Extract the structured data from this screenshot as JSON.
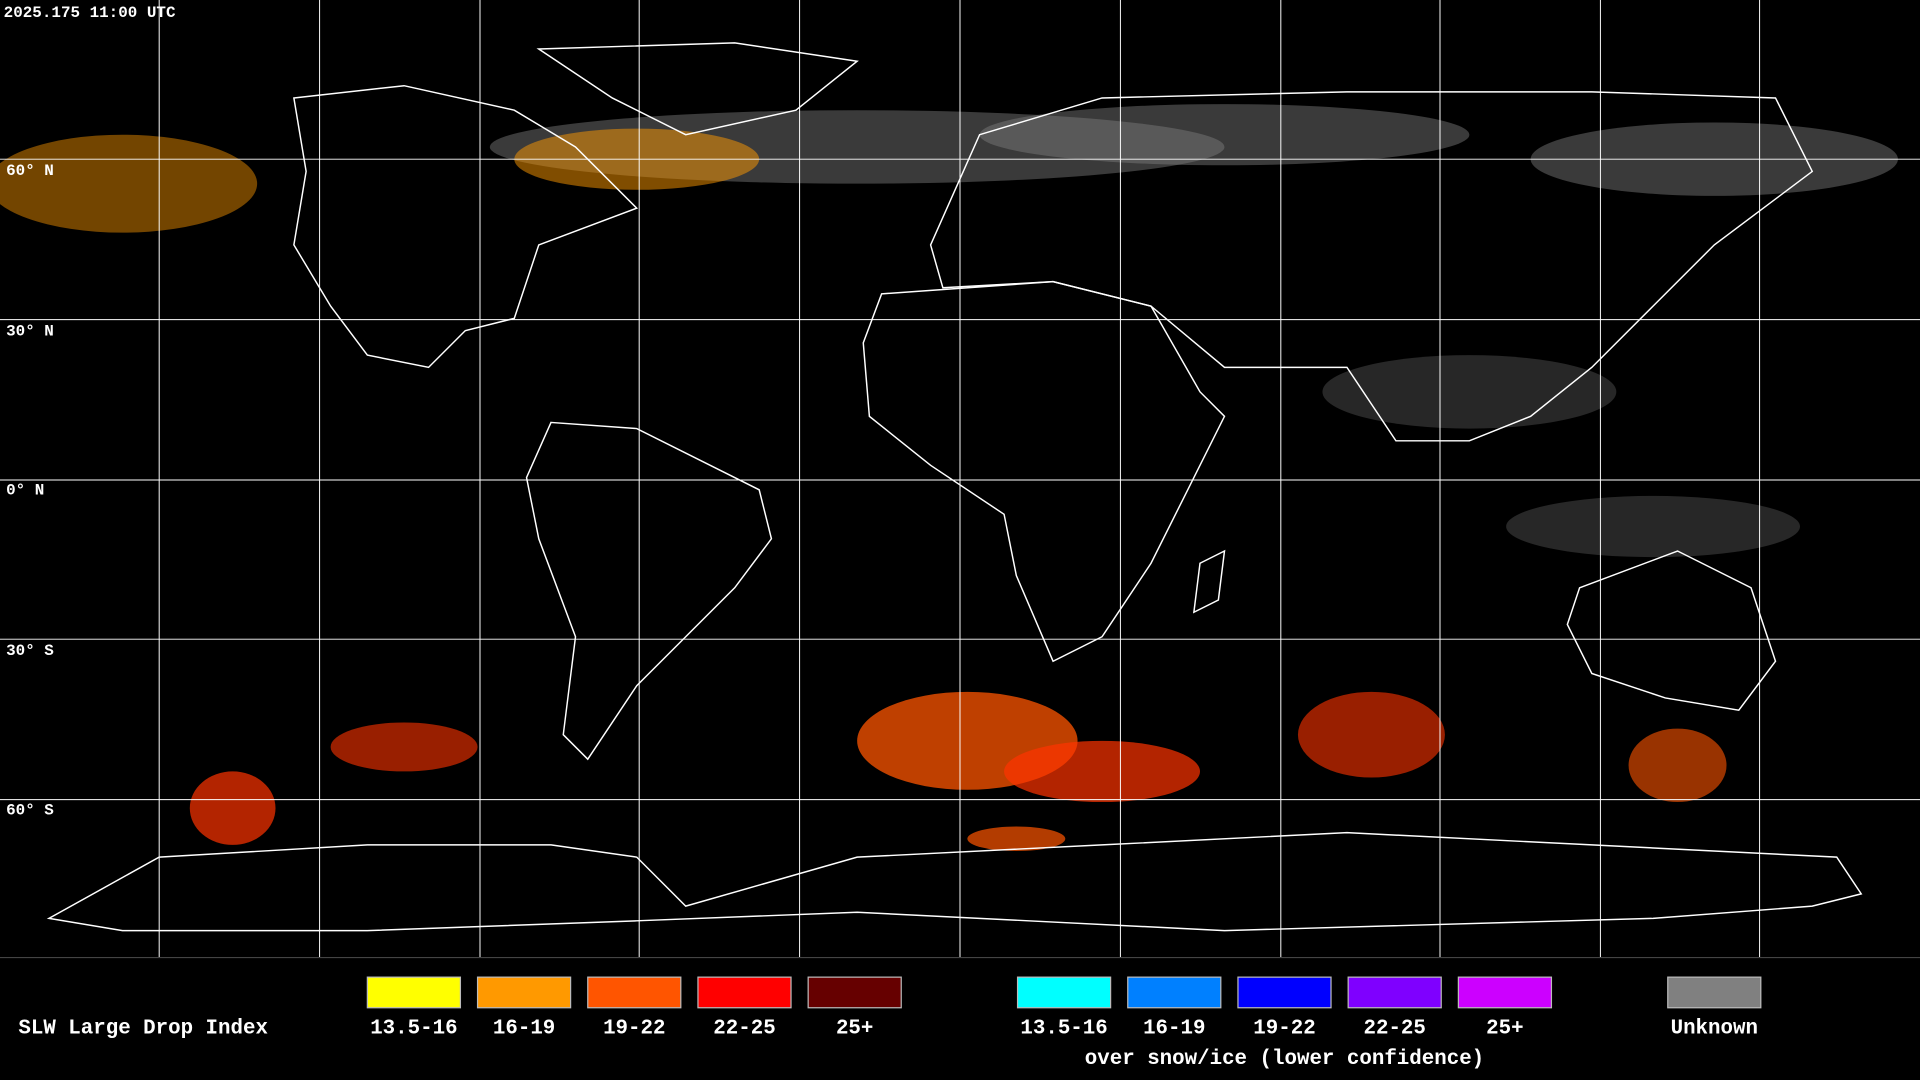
{
  "header": {
    "timestamp": "2025.175 11:00 UTC"
  },
  "map": {
    "latitude_labels": [
      "60° N",
      "30° N",
      "0° N",
      "30° S",
      "60° S"
    ]
  },
  "legend": {
    "title": "SLW Large Drop Index",
    "groups": [
      {
        "items": [
          {
            "label": "13.5-16",
            "color": "#ffff00"
          },
          {
            "label": "16-19",
            "color": "#ff9900"
          },
          {
            "label": "19-22",
            "color": "#ff5500"
          },
          {
            "label": "22-25",
            "color": "#ff0000"
          },
          {
            "label": "25+",
            "color": "#660000"
          }
        ]
      },
      {
        "items": [
          {
            "label": "13.5-16",
            "color": "#00ffff"
          },
          {
            "label": "16-19",
            "color": "#0080ff"
          },
          {
            "label": "19-22",
            "color": "#0000ff"
          },
          {
            "label": "22-25",
            "color": "#7f00ff"
          },
          {
            "label": "25+",
            "color": "#cc00ff"
          }
        ],
        "caption": "over snow/ice (lower confidence)"
      },
      {
        "items": [
          {
            "label": "Unknown",
            "color": "#808080"
          }
        ]
      }
    ]
  }
}
